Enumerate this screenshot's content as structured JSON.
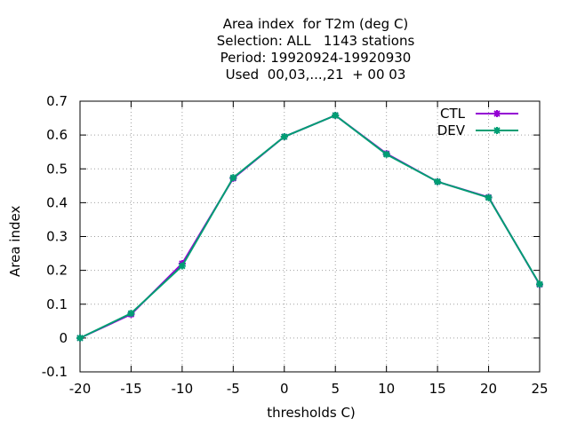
{
  "chart_data": {
    "type": "line",
    "title_lines": [
      "Area index  for T2m (deg C)",
      "Selection: ALL   1143 stations",
      "Period: 19920924-19920930",
      "Used  00,03,...,21  + 00 03"
    ],
    "xlabel": "thresholds C)",
    "ylabel": "Area index",
    "x": [
      -20,
      -15,
      -10,
      -5,
      0,
      5,
      10,
      15,
      20,
      25
    ],
    "xlim": [
      -20,
      25
    ],
    "ylim": [
      -0.1,
      0.7
    ],
    "xticks": [
      -20,
      -15,
      -10,
      -5,
      0,
      5,
      10,
      15,
      20,
      25
    ],
    "yticks": [
      -0.1,
      0,
      0.1,
      0.2,
      0.3,
      0.4,
      0.5,
      0.6,
      0.7
    ],
    "xtick_labels": [
      "-20",
      "-15",
      "-10",
      "-5",
      "0",
      "5",
      "10",
      "15",
      "20",
      "25"
    ],
    "ytick_labels": [
      "-0.1",
      "0",
      "0.1",
      "0.2",
      "0.3",
      "0.4",
      "0.5",
      "0.6",
      "0.7"
    ],
    "grid": true,
    "legend_position": "top-right",
    "series": [
      {
        "name": "CTL",
        "color": "#9400d3",
        "values": [
          0.0,
          0.07,
          0.22,
          0.472,
          0.595,
          0.658,
          0.545,
          0.462,
          0.416,
          0.158
        ]
      },
      {
        "name": "DEV",
        "color": "#009e73",
        "values": [
          0.0,
          0.073,
          0.213,
          0.474,
          0.595,
          0.658,
          0.543,
          0.462,
          0.415,
          0.159
        ]
      }
    ]
  }
}
